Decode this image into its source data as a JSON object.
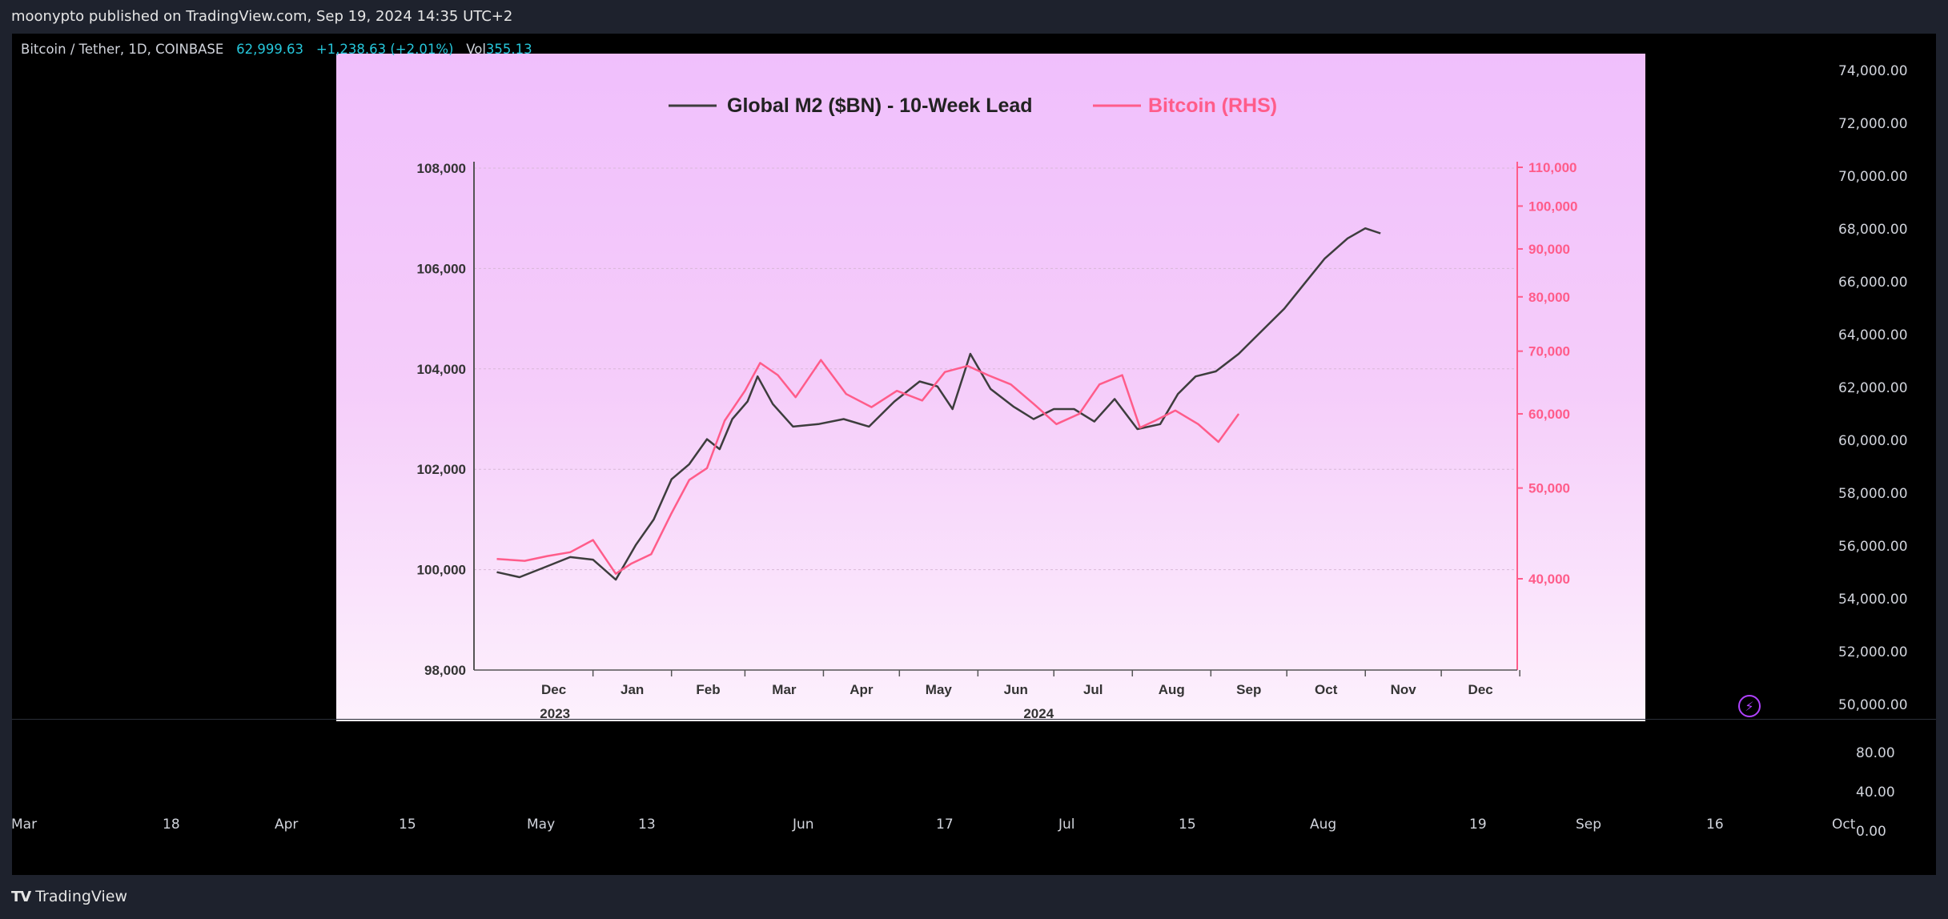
{
  "header": {
    "published": "moonypto published on TradingView.com, Sep 19, 2024 14:35 UTC+2"
  },
  "ticker": {
    "symbol": "Bitcoin / Tether, 1D, COINBASE",
    "price": "62,999.63",
    "change": "+1,238.63 (+2.01%)",
    "vol_label": "Vol",
    "vol": "355.13"
  },
  "price_axis": [
    "74,000.00",
    "72,000.00",
    "70,000.00",
    "68,000.00",
    "66,000.00",
    "64,000.00",
    "62,000.00",
    "60,000.00",
    "58,000.00",
    "56,000.00",
    "54,000.00",
    "52,000.00",
    "50,000.00"
  ],
  "volume_axis": [
    "80.00",
    "40.00",
    "0.00"
  ],
  "time_axis": [
    "Mar",
    "18",
    "Apr",
    "15",
    "May",
    "13",
    "Jun",
    "17",
    "Jul",
    "15",
    "Aug",
    "19",
    "Sep",
    "16",
    "Oct"
  ],
  "footer": {
    "brand": "TradingView",
    "logo": "TV"
  },
  "colors": {
    "m2": "#3d3d3d",
    "bitcoin": "#ff5c8a",
    "background": "#000000"
  },
  "chart_data": {
    "type": "line",
    "legend": [
      "Global M2 ($BN) - 10-Week Lead",
      "Bitcoin (RHS)"
    ],
    "legend_position": "top-center",
    "x_labels": [
      "Dec",
      "Jan",
      "Feb",
      "Mar",
      "Apr",
      "May",
      "Jun",
      "Jul",
      "Aug",
      "Sep",
      "Oct",
      "Nov",
      "Dec"
    ],
    "year_labels": [
      "2023",
      "2024"
    ],
    "y_left": {
      "ticks": [
        "108,000",
        "106,000",
        "104,000",
        "102,000",
        "100,000",
        "98,000"
      ],
      "range": [
        98000,
        108000
      ]
    },
    "y_right": {
      "ticks": [
        "110,000",
        "100,000",
        "90,000",
        "80,000",
        "70,000",
        "60,000",
        "50,000",
        "40,000"
      ],
      "scale": "log"
    },
    "grid": true,
    "series": [
      {
        "name": "Global M2 ($BN) - 10-Week Lead",
        "axis": "left",
        "x": [
          "2023-11-24",
          "2023-12-03",
          "2023-12-13",
          "2023-12-23",
          "2024-01-01",
          "2024-01-10",
          "2024-01-18",
          "2024-01-25",
          "2024-02-01",
          "2024-02-08",
          "2024-02-15",
          "2024-02-20",
          "2024-02-25",
          "2024-03-02",
          "2024-03-06",
          "2024-03-12",
          "2024-03-20",
          "2024-03-30",
          "2024-04-09",
          "2024-04-19",
          "2024-04-29",
          "2024-05-09",
          "2024-05-16",
          "2024-05-22",
          "2024-05-29",
          "2024-06-06",
          "2024-06-15",
          "2024-06-23",
          "2024-07-01",
          "2024-07-09",
          "2024-07-17",
          "2024-07-25",
          "2024-08-03",
          "2024-08-12",
          "2024-08-19",
          "2024-08-26",
          "2024-09-03",
          "2024-09-12",
          "2024-09-20",
          "2024-09-30",
          "2024-10-08",
          "2024-10-16",
          "2024-10-25",
          "2024-11-01",
          "2024-11-07"
        ],
        "values": [
          99950,
          99850,
          100050,
          100250,
          100200,
          99800,
          100500,
          101000,
          101800,
          102100,
          102600,
          102400,
          103000,
          103350,
          103850,
          103300,
          102850,
          102900,
          103000,
          102850,
          103350,
          103750,
          103650,
          103200,
          104300,
          103600,
          103250,
          103000,
          103200,
          103200,
          102950,
          103400,
          102800,
          102900,
          103500,
          103850,
          103950,
          104300,
          104700,
          105200,
          105700,
          106200,
          106600,
          106800,
          106700
        ]
      },
      {
        "name": "Bitcoin (RHS)",
        "axis": "right",
        "x": [
          "2023-11-24",
          "2023-12-05",
          "2023-12-14",
          "2023-12-23",
          "2024-01-01",
          "2024-01-10",
          "2024-01-16",
          "2024-01-24",
          "2024-02-01",
          "2024-02-08",
          "2024-02-15",
          "2024-02-22",
          "2024-03-01",
          "2024-03-07",
          "2024-03-14",
          "2024-03-21",
          "2024-03-31",
          "2024-04-10",
          "2024-04-20",
          "2024-04-30",
          "2024-05-10",
          "2024-05-19",
          "2024-05-28",
          "2024-06-05",
          "2024-06-14",
          "2024-06-23",
          "2024-07-02",
          "2024-07-11",
          "2024-07-19",
          "2024-07-28",
          "2024-08-04",
          "2024-08-10",
          "2024-08-18",
          "2024-08-27",
          "2024-09-04",
          "2024-09-12"
        ],
        "values": [
          42000,
          41800,
          42300,
          42700,
          44000,
          40500,
          41500,
          42500,
          47000,
          51000,
          52500,
          59000,
          63500,
          68000,
          66000,
          62500,
          68500,
          63000,
          61000,
          63500,
          62000,
          66500,
          67500,
          66000,
          64500,
          61500,
          58500,
          60000,
          64500,
          66000,
          58000,
          59000,
          60500,
          58500,
          56000,
          60000
        ]
      }
    ]
  }
}
